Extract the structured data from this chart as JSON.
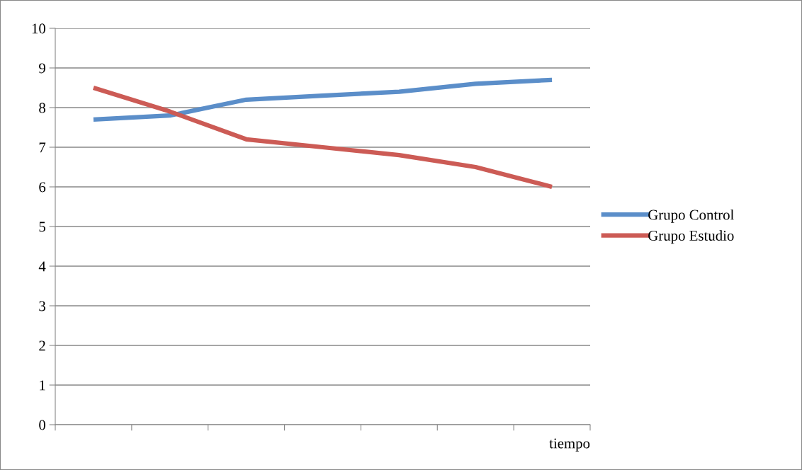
{
  "chart_data": {
    "type": "line",
    "xlabel": "tiempo",
    "categories": [
      null,
      null,
      null,
      null,
      null,
      null,
      null
    ],
    "series": [
      {
        "name": "Grupo Control",
        "color": "#5b8ec9",
        "values": [
          7.7,
          7.8,
          8.2,
          8.3,
          8.4,
          8.6,
          8.7
        ]
      },
      {
        "name": "Grupo Estudio",
        "color": "#cc5b55",
        "values": [
          8.5,
          7.9,
          7.2,
          7.0,
          6.8,
          6.5,
          6.0
        ]
      }
    ],
    "ylim": [
      0,
      10
    ],
    "yticks": [
      0,
      1,
      2,
      3,
      4,
      5,
      6,
      7,
      8,
      9,
      10
    ],
    "grid": "y",
    "legend": "right",
    "marker": "none",
    "line_style": "solid"
  }
}
